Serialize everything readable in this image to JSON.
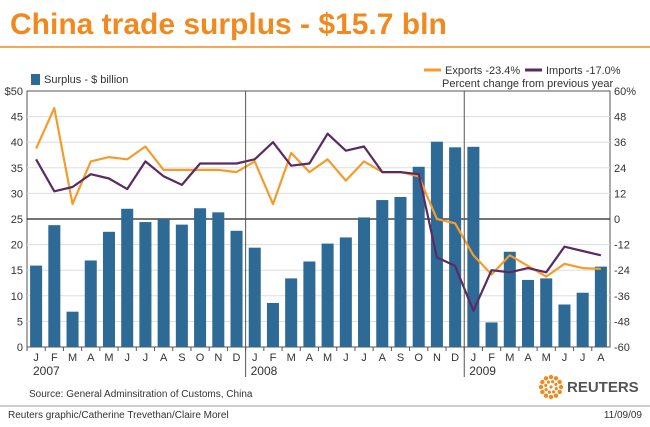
{
  "title": "China trade surplus - $15.7 bln",
  "source": "Source: General Adminsitration of Customs, China",
  "credit": "Reuters graphic/Catherine Trevethan/Claire Morel",
  "date": "11/09/09",
  "brand": "REUTERS",
  "colors": {
    "title": "#f08a1e",
    "bar": "#2e6a96",
    "exports": "#f39c2c",
    "imports": "#5b2a63",
    "frame": "#555555",
    "grid": "#dddddd"
  },
  "legend": {
    "bar_label": "Surplus - $ billion",
    "exports_label": "Exports -23.4%",
    "imports_label": "Imports -17.0%",
    "pct_note": "Percent change from previous year"
  },
  "chart_data": {
    "type": "bar",
    "left_axis": {
      "ticks": [
        "$50",
        "45",
        "40",
        "35",
        "30",
        "25",
        "20",
        "15",
        "10",
        "5",
        "0"
      ],
      "values": [
        50,
        45,
        40,
        35,
        30,
        25,
        20,
        15,
        10,
        5,
        0
      ],
      "ylim": [
        0,
        50
      ]
    },
    "right_axis": {
      "ticks": [
        "60%",
        "48",
        "36",
        "24",
        "12",
        "0",
        "-12",
        "-24",
        "-36",
        "-48",
        "-60"
      ],
      "values": [
        60,
        48,
        36,
        24,
        12,
        0,
        -12,
        -24,
        -36,
        -48,
        -60
      ],
      "ylim": [
        -60,
        60
      ]
    },
    "categories": [
      "J",
      "F",
      "M",
      "A",
      "M",
      "J",
      "J",
      "A",
      "S",
      "O",
      "N",
      "D",
      "J",
      "F",
      "M",
      "A",
      "M",
      "J",
      "J",
      "A",
      "S",
      "O",
      "N",
      "D",
      "J",
      "F",
      "M",
      "A",
      "M",
      "J",
      "J",
      "A"
    ],
    "year_labels": [
      {
        "label": "2007",
        "index": 0
      },
      {
        "label": "2008",
        "index": 12
      },
      {
        "label": "2009",
        "index": 24
      }
    ],
    "series": [
      {
        "name": "Surplus - $ billion",
        "type": "bar",
        "axis": "left",
        "values": [
          15.9,
          23.8,
          6.9,
          16.9,
          22.5,
          27.0,
          24.4,
          25.0,
          23.9,
          27.1,
          26.3,
          22.7,
          19.4,
          8.6,
          13.4,
          16.7,
          20.2,
          21.4,
          25.3,
          28.7,
          29.3,
          35.2,
          40.1,
          39.0,
          39.1,
          4.8,
          18.6,
          13.1,
          13.4,
          8.3,
          10.6,
          15.7
        ]
      },
      {
        "name": "Exports -23.4%",
        "type": "line",
        "axis": "right",
        "values": [
          33,
          52,
          7,
          27,
          29,
          28,
          34,
          23,
          23,
          23,
          23,
          22,
          27,
          7,
          31,
          22,
          28,
          18,
          27,
          22,
          22,
          20,
          0,
          -2,
          -17,
          -26,
          -17,
          -22,
          -27,
          -21,
          -23,
          -23.4
        ]
      },
      {
        "name": "Imports -17.0%",
        "type": "line",
        "axis": "right",
        "values": [
          28,
          13,
          15,
          21,
          19,
          14,
          27,
          20,
          16,
          26,
          26,
          26,
          28,
          36,
          25,
          26,
          40,
          32,
          34,
          22,
          22,
          21,
          -18,
          -22,
          -43,
          -24,
          -25,
          -23,
          -25,
          -13,
          -15,
          -17
        ]
      }
    ]
  }
}
